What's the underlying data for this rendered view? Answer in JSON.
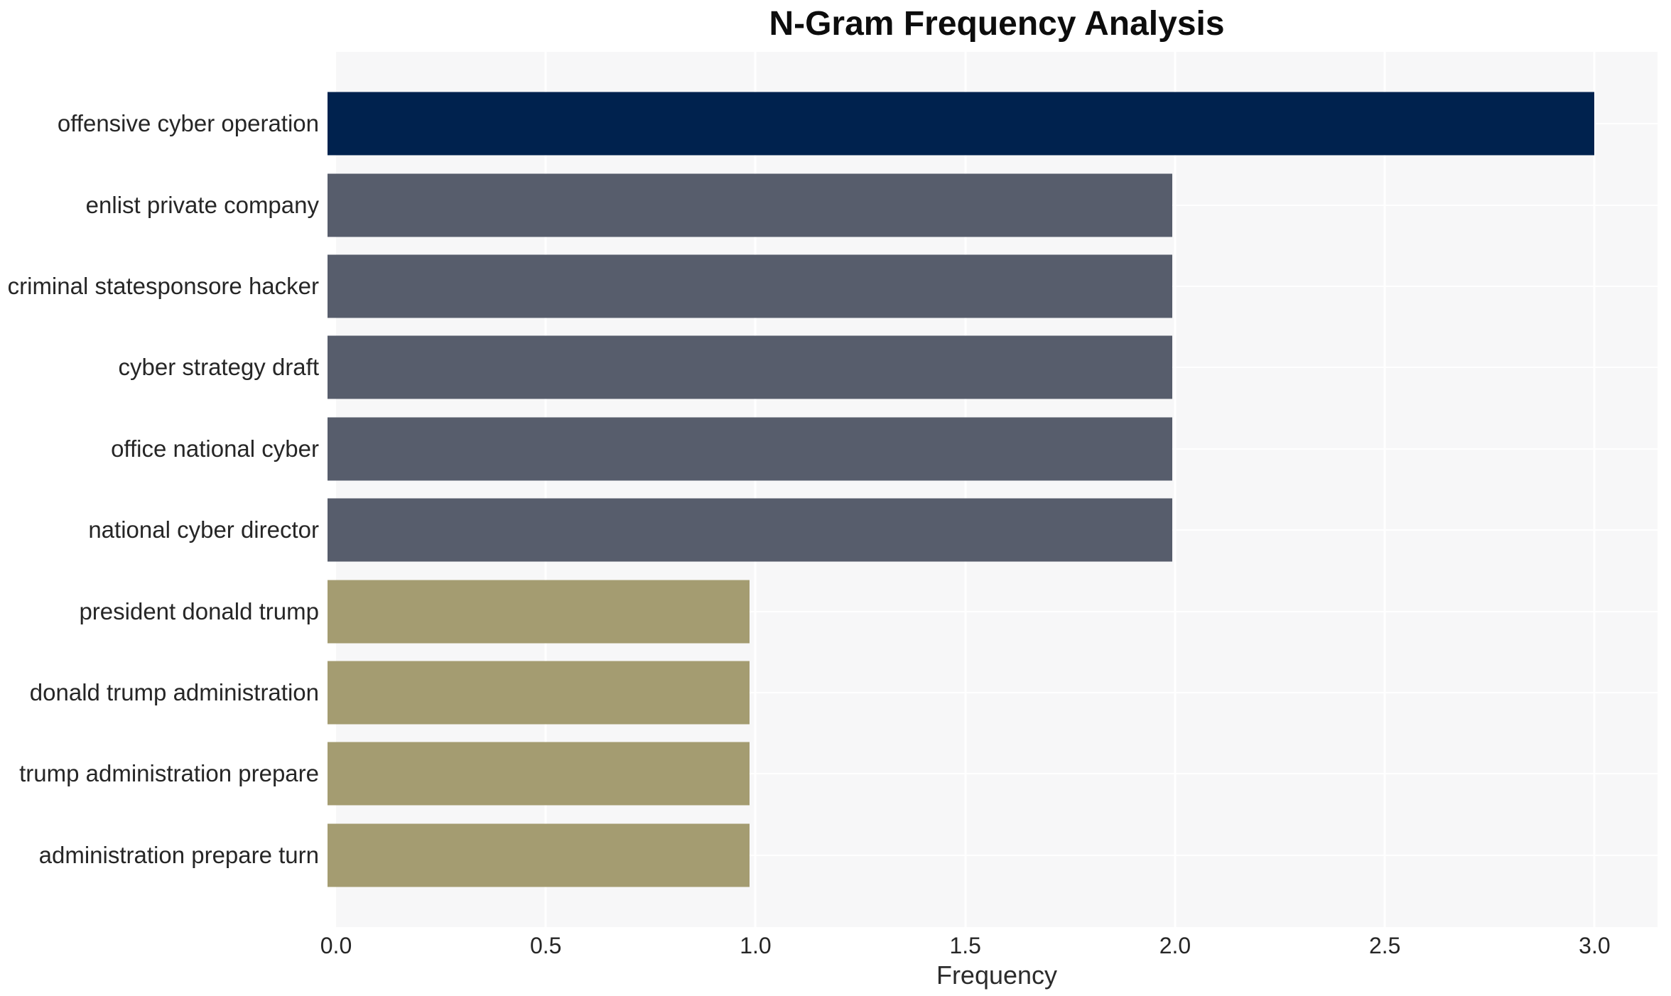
{
  "title": "N-Gram Frequency Analysis",
  "chart_data": {
    "type": "bar",
    "orientation": "horizontal",
    "title": "N-Gram Frequency Analysis",
    "categories": [
      "offensive cyber operation",
      "enlist private company",
      "criminal statesponsore hacker",
      "cyber strategy draft",
      "office national cyber",
      "national cyber director",
      "president donald trump",
      "donald trump administration",
      "trump administration prepare",
      "administration prepare turn"
    ],
    "values": [
      3,
      2,
      2,
      2,
      2,
      2,
      1,
      1,
      1,
      1
    ],
    "bar_colors": [
      "#00224E",
      "#575D6C",
      "#575D6C",
      "#575D6C",
      "#575D6C",
      "#575D6C",
      "#A49C71",
      "#A49C71",
      "#A49C71",
      "#A49C71"
    ],
    "xlabel": "Frequency",
    "ylabel": "",
    "xlim": [
      0,
      3.15
    ],
    "xticks": [
      0,
      0.5,
      1,
      1.5,
      2,
      2.5,
      3
    ],
    "xtick_labels": [
      "0.0",
      "0.5",
      "1.0",
      "1.5",
      "2.0",
      "2.5",
      "3.0"
    ],
    "gridline_values": [
      0.5,
      1,
      1.5,
      2,
      2.5,
      3
    ],
    "grid": true,
    "legend": false,
    "colors": {
      "plot_background": "#F7F7F8",
      "gridline": "#FFFFFF",
      "text": "#262626",
      "title_text": "#0D0D0D",
      "bar_value_3": "#00224E",
      "bar_value_2": "#575D6C",
      "bar_value_1": "#A49C71"
    }
  }
}
